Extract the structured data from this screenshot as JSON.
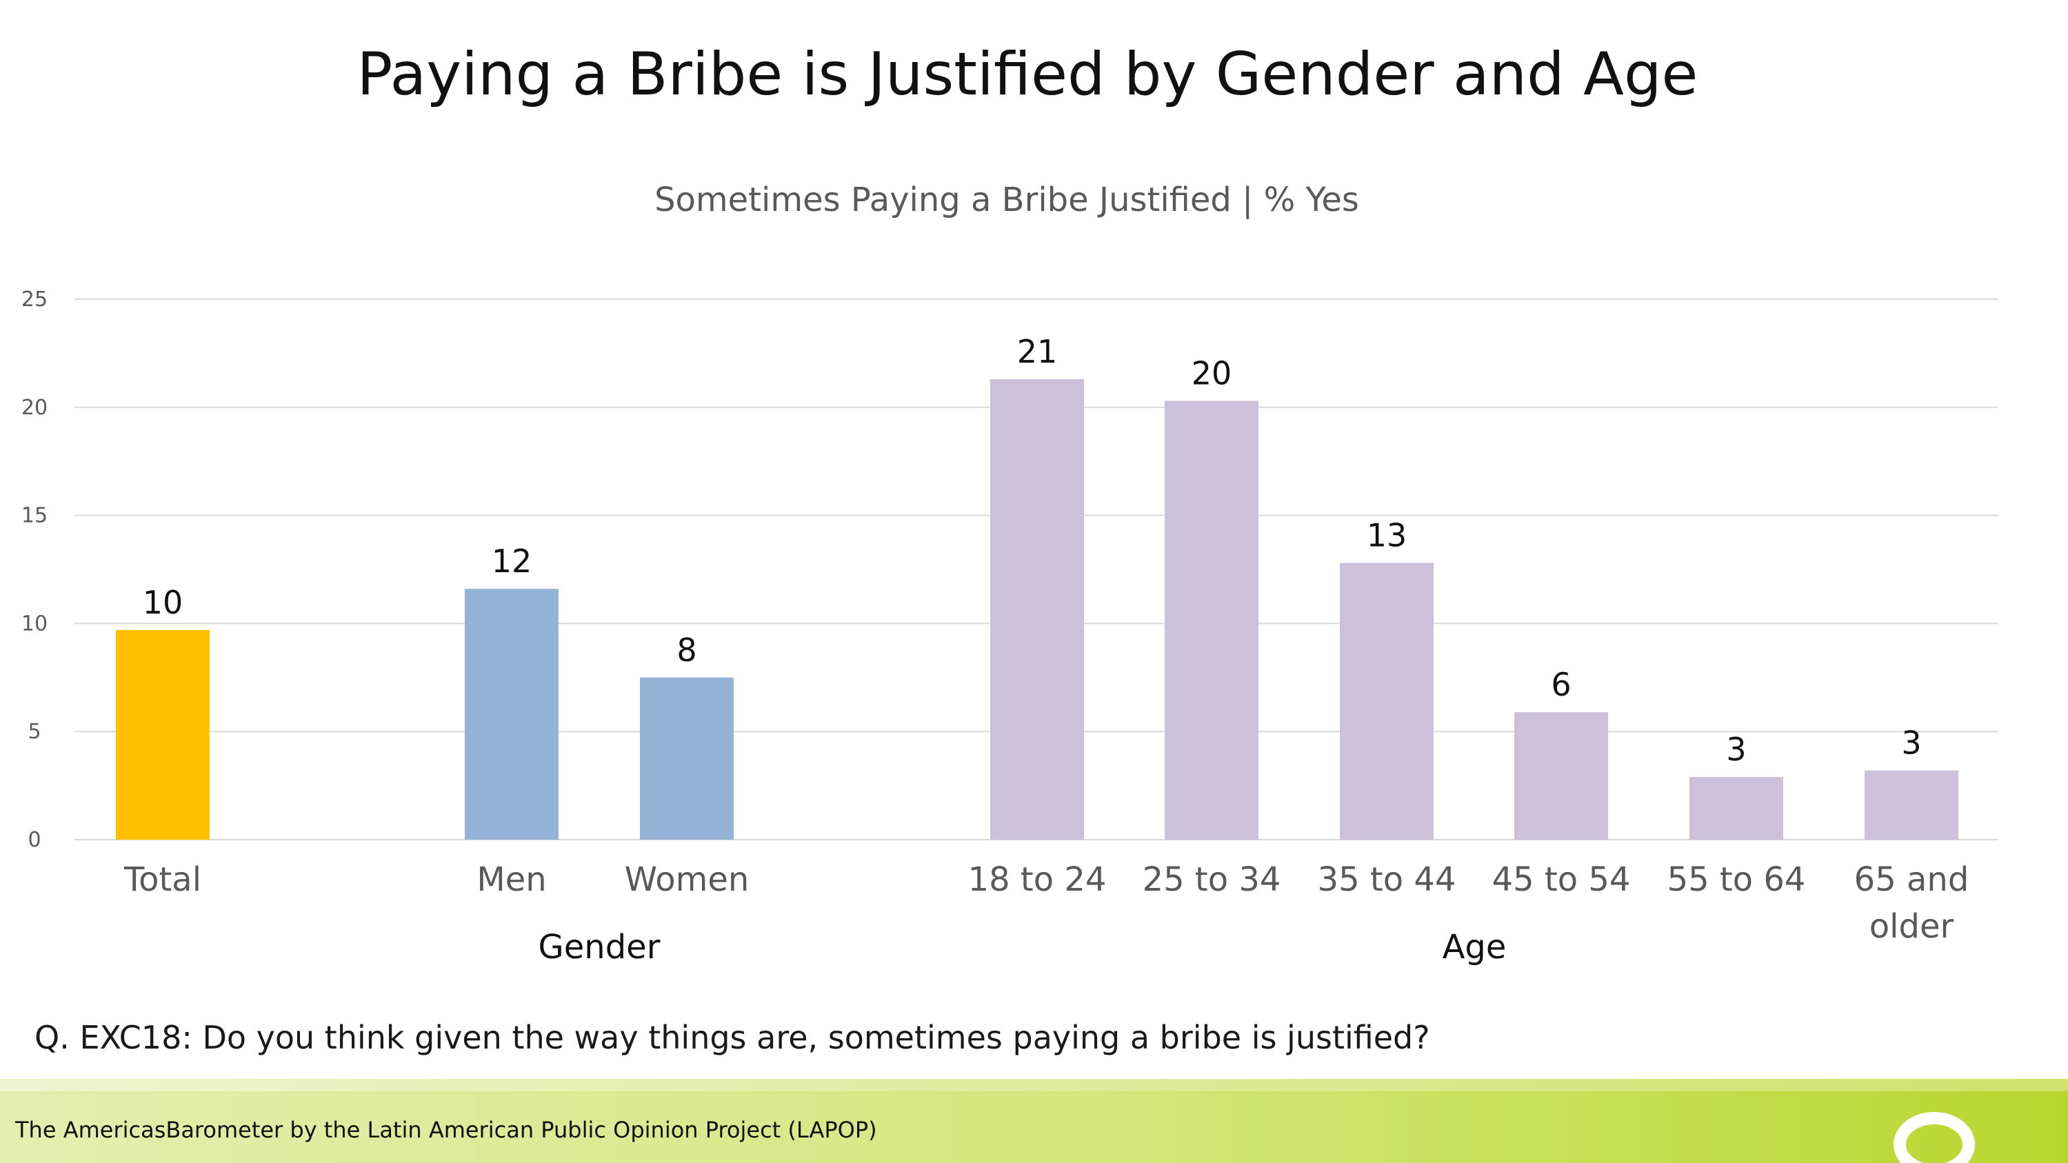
{
  "title": "Paying a Bribe is Justified by Gender and Age",
  "question": "Q. EXC18: Do you think given the way things are, sometimes paying a bribe is justified?",
  "footer": {
    "text": "The AmericasBarometer by the Latin American Public Opinion Project (LAPOP)",
    "logo_icon": "lapop-ring-icon"
  },
  "colors": {
    "total": "#FFC000",
    "gender": "#95B3D7",
    "age": "#CCC1DA",
    "grid": "#D9D9D9",
    "axis_text": "#595959"
  },
  "chart_data": {
    "type": "bar",
    "title": "Sometimes Paying a Bribe Justified | % Yes",
    "ylim": [
      0,
      25
    ],
    "yticks": [
      0,
      5,
      10,
      15,
      20,
      25
    ],
    "grid": true,
    "categories": [
      "Total",
      "Men",
      "Women",
      "18 to 24",
      "25 to 34",
      "35 to 44",
      "45 to 54",
      "55 to 64",
      "65 and older"
    ],
    "category_display": [
      [
        "Total"
      ],
      [
        "Men"
      ],
      [
        "Women"
      ],
      [
        "18 to 24"
      ],
      [
        "25 to 34"
      ],
      [
        "35 to 44"
      ],
      [
        "45 to 54"
      ],
      [
        "55 to 64"
      ],
      [
        "65 and",
        "older"
      ]
    ],
    "values": [
      9.7,
      11.6,
      7.5,
      21.3,
      20.3,
      12.8,
      5.9,
      2.9,
      3.2
    ],
    "data_labels": [
      "10",
      "12",
      "8",
      "21",
      "20",
      "13",
      "6",
      "3",
      "3"
    ],
    "groups": [
      {
        "name": "",
        "members": [
          0
        ],
        "color_key": "total"
      },
      {
        "name": "Gender",
        "members": [
          1,
          2
        ],
        "color_key": "gender"
      },
      {
        "name": "Age",
        "members": [
          3,
          4,
          5,
          6,
          7,
          8
        ],
        "color_key": "age"
      }
    ]
  }
}
